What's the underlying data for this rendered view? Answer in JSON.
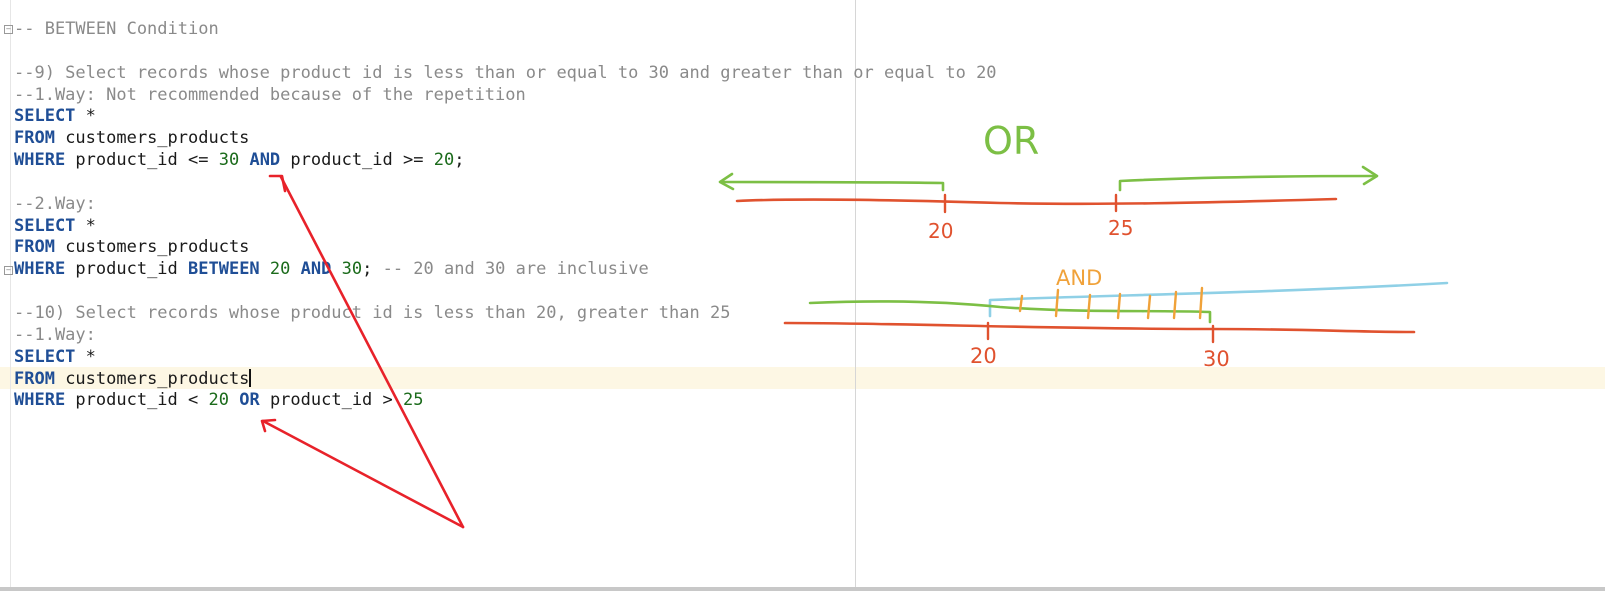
{
  "editor": {
    "lines": [
      {
        "tokens": [
          {
            "t": "-- BETWEEN Condition",
            "c": "cm"
          }
        ]
      },
      {
        "tokens": []
      },
      {
        "tokens": [
          {
            "t": "--9) Select records whose product id is less than or equal to 30 and greater than or equal to 20",
            "c": "cm"
          }
        ]
      },
      {
        "tokens": [
          {
            "t": "--1.Way: Not recommended because of the repetition",
            "c": "cm"
          }
        ]
      },
      {
        "tokens": [
          {
            "t": "SELECT",
            "c": "kw"
          },
          {
            "t": " *",
            "c": ""
          }
        ]
      },
      {
        "tokens": [
          {
            "t": "FROM",
            "c": "kw"
          },
          {
            "t": " customers_products",
            "c": ""
          }
        ]
      },
      {
        "tokens": [
          {
            "t": "WHERE",
            "c": "kw"
          },
          {
            "t": " product_id <= ",
            "c": ""
          },
          {
            "t": "30",
            "c": "num"
          },
          {
            "t": " ",
            "c": ""
          },
          {
            "t": "AND",
            "c": "kw"
          },
          {
            "t": " product_id >= ",
            "c": ""
          },
          {
            "t": "20",
            "c": "num"
          },
          {
            "t": ";",
            "c": ""
          }
        ]
      },
      {
        "tokens": []
      },
      {
        "tokens": [
          {
            "t": "--2.Way:",
            "c": "cm"
          }
        ]
      },
      {
        "tokens": [
          {
            "t": "SELECT",
            "c": "kw"
          },
          {
            "t": " *",
            "c": ""
          }
        ]
      },
      {
        "tokens": [
          {
            "t": "FROM",
            "c": "kw"
          },
          {
            "t": " customers_products",
            "c": ""
          }
        ]
      },
      {
        "tokens": [
          {
            "t": "WHERE",
            "c": "kw"
          },
          {
            "t": " product_id ",
            "c": ""
          },
          {
            "t": "BETWEEN",
            "c": "kw"
          },
          {
            "t": " ",
            "c": ""
          },
          {
            "t": "20",
            "c": "num"
          },
          {
            "t": " ",
            "c": ""
          },
          {
            "t": "AND",
            "c": "kw"
          },
          {
            "t": " ",
            "c": ""
          },
          {
            "t": "30",
            "c": "num"
          },
          {
            "t": "; ",
            "c": ""
          },
          {
            "t": "-- 20 and 30 are inclusive",
            "c": "cm"
          }
        ]
      },
      {
        "tokens": []
      },
      {
        "tokens": [
          {
            "t": "--10) Select records whose product id is less than 20, greater than 25",
            "c": "cm"
          }
        ]
      },
      {
        "tokens": [
          {
            "t": "--1.Way:",
            "c": "cm"
          }
        ]
      },
      {
        "tokens": [
          {
            "t": "SELECT",
            "c": "kw"
          },
          {
            "t": " *",
            "c": ""
          }
        ]
      },
      {
        "tokens": [
          {
            "t": "FROM",
            "c": "kw"
          },
          {
            "t": " customers_products",
            "c": ""
          }
        ],
        "caret": true
      },
      {
        "tokens": [
          {
            "t": "WHERE",
            "c": "kw"
          },
          {
            "t": " product_id < ",
            "c": ""
          },
          {
            "t": "20",
            "c": "num"
          },
          {
            "t": " ",
            "c": ""
          },
          {
            "t": "OR",
            "c": "kw"
          },
          {
            "t": " product_id > ",
            "c": ""
          },
          {
            "t": "25",
            "c": "num"
          }
        ]
      }
    ]
  },
  "annotations": {
    "or_label": "OR",
    "and_label": "AND",
    "or_tick_1": "20",
    "or_tick_2": "25",
    "and_tick_1": "20",
    "and_tick_2": "30"
  },
  "colors": {
    "keyword": "#1f4e96",
    "number": "#1b6b1b",
    "comment": "#8a8a8a",
    "pen_red": "#e0522f",
    "pen_green": "#7cbf45",
    "pen_orange": "#f0a23a",
    "pen_blue": "#8fd0e6",
    "arrow_red": "#e8222a"
  }
}
